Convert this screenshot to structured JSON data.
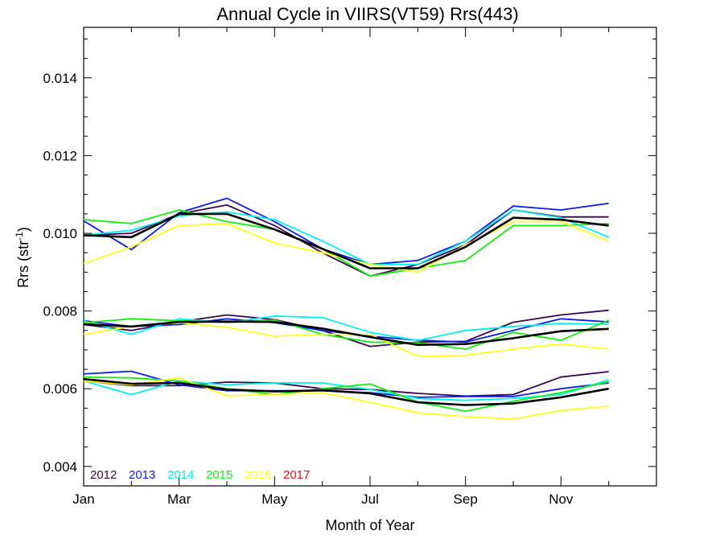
{
  "chart_data": {
    "type": "line",
    "title": "Annual Cycle in VIIRS(VT59) Rrs(443)",
    "xlabel": "Month of Year",
    "ylabel_prefix": "Rrs (str",
    "ylabel_sup": "-1",
    "ylabel_suffix": ")",
    "xlim": [
      1,
      13
    ],
    "ylim": [
      0.0035,
      0.0153
    ],
    "x_ticks": [
      {
        "value": 1,
        "label": "Jan"
      },
      {
        "value": 3,
        "label": "Mar"
      },
      {
        "value": 5,
        "label": "May"
      },
      {
        "value": 7,
        "label": "Jul"
      },
      {
        "value": 9,
        "label": "Sep"
      },
      {
        "value": 11,
        "label": "Nov"
      }
    ],
    "x_minor_ticks": [
      2,
      4,
      6,
      8,
      10,
      12
    ],
    "y_ticks": [
      {
        "value": 0.004,
        "label": "0.004"
      },
      {
        "value": 0.006,
        "label": "0.006"
      },
      {
        "value": 0.008,
        "label": "0.008"
      },
      {
        "value": 0.01,
        "label": "0.010"
      },
      {
        "value": 0.012,
        "label": "0.012"
      },
      {
        "value": 0.014,
        "label": "0.014"
      }
    ],
    "y_minor_step": 0.0005,
    "grid": false,
    "legend_position": "bottom-left",
    "x": [
      1,
      2,
      3,
      4,
      5,
      6,
      7,
      8,
      9,
      10,
      11,
      12
    ],
    "series": [
      {
        "name": "2012",
        "color": "#3a0550",
        "groups": [
          [
            0.00995,
            0.01,
            0.0105,
            0.01073,
            0.0102,
            0.0095,
            0.0089,
            0.0092,
            0.0097,
            0.0106,
            0.01042,
            0.01042
          ],
          [
            0.00765,
            0.0075,
            0.00772,
            0.0079,
            0.00778,
            0.0075,
            0.00709,
            0.0072,
            0.00722,
            0.00771,
            0.0079,
            0.00802
          ],
          [
            0.0062,
            0.00608,
            0.00608,
            0.00617,
            0.00615,
            0.006,
            0.00598,
            0.00588,
            0.00581,
            0.00585,
            0.0063,
            0.00644
          ]
        ]
      },
      {
        "name": "2013",
        "color": "#0a1ee8",
        "groups": [
          [
            0.01032,
            0.00958,
            0.01053,
            0.0109,
            0.0103,
            0.0096,
            0.0092,
            0.0093,
            0.0098,
            0.0107,
            0.0106,
            0.01077
          ],
          [
            0.00775,
            0.0076,
            0.00765,
            0.0078,
            0.0077,
            0.0075,
            0.00735,
            0.00725,
            0.0072,
            0.0075,
            0.0078,
            0.00772
          ],
          [
            0.00638,
            0.00645,
            0.0061,
            0.00595,
            0.00595,
            0.00595,
            0.0059,
            0.00578,
            0.0058,
            0.0058,
            0.006,
            0.00615
          ]
        ]
      },
      {
        "name": "2014",
        "color": "#00f0f0",
        "groups": [
          [
            0.00995,
            0.01008,
            0.01045,
            0.01055,
            0.01035,
            0.0098,
            0.0092,
            0.0092,
            0.0098,
            0.0106,
            0.0104,
            0.0099
          ],
          [
            0.00775,
            0.0074,
            0.0078,
            0.0077,
            0.00787,
            0.00783,
            0.00745,
            0.00724,
            0.0075,
            0.0076,
            0.00768,
            0.00766
          ],
          [
            0.0062,
            0.00585,
            0.0062,
            0.0061,
            0.00615,
            0.00615,
            0.00598,
            0.00575,
            0.0057,
            0.00575,
            0.00585,
            0.00623
          ]
        ]
      },
      {
        "name": "2015",
        "color": "#10f010",
        "groups": [
          [
            0.01035,
            0.01025,
            0.0106,
            0.0103,
            0.0101,
            0.0096,
            0.0089,
            0.0091,
            0.0093,
            0.0102,
            0.0102,
            0.01025
          ],
          [
            0.0077,
            0.0078,
            0.00775,
            0.0077,
            0.00777,
            0.0074,
            0.0072,
            0.00718,
            0.00702,
            0.00745,
            0.00725,
            0.00776
          ],
          [
            0.0063,
            0.00628,
            0.0062,
            0.006,
            0.00585,
            0.006,
            0.00612,
            0.00566,
            0.00542,
            0.00568,
            0.0059,
            0.00618
          ]
        ]
      },
      {
        "name": "2016",
        "color": "#ffff1a",
        "groups": [
          [
            0.00922,
            0.00965,
            0.0102,
            0.01025,
            0.00975,
            0.0095,
            0.0092,
            0.009,
            0.0097,
            0.0103,
            0.0103,
            0.0098
          ],
          [
            0.0074,
            0.0076,
            0.0077,
            0.00758,
            0.00735,
            0.0074,
            0.0074,
            0.00683,
            0.00686,
            0.00702,
            0.00715,
            0.00702
          ],
          [
            0.0062,
            0.0061,
            0.00628,
            0.00582,
            0.00585,
            0.0059,
            0.00565,
            0.00538,
            0.00528,
            0.00522,
            0.00544,
            0.00555
          ]
        ]
      },
      {
        "name": "2017",
        "color": "#f01010",
        "groups": []
      },
      {
        "name": "",
        "color": "#000000",
        "width": 2.6,
        "groups": [
          [
            0.00995,
            0.0099,
            0.0105,
            0.0105,
            0.0101,
            0.0096,
            0.0091,
            0.0091,
            0.00965,
            0.0104,
            0.01035,
            0.0102
          ],
          [
            0.00766,
            0.0076,
            0.00772,
            0.00773,
            0.00772,
            0.00755,
            0.00733,
            0.00713,
            0.00715,
            0.0073,
            0.00748,
            0.00754
          ],
          [
            0.00625,
            0.00613,
            0.00615,
            0.00598,
            0.00593,
            0.00596,
            0.00588,
            0.00565,
            0.00558,
            0.00562,
            0.00578,
            0.006
          ]
        ]
      }
    ]
  }
}
